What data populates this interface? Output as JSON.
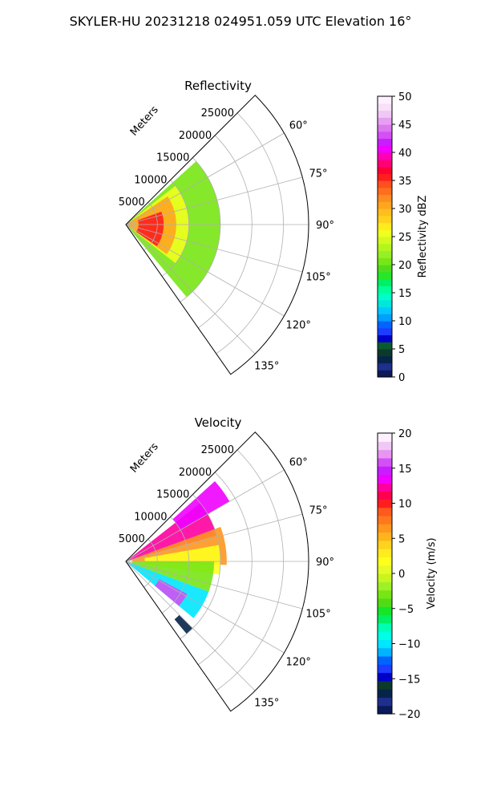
{
  "figure": {
    "suptitle": "SKYLER-HU  20231218  024951.059 UTC Elevation 16°"
  },
  "chart_data": [
    {
      "type": "heatmap",
      "subtype": "polar-sector (PPI)",
      "title": "Reflectivity",
      "radial_label": "Meters",
      "radial_ticks": [
        5000,
        10000,
        15000,
        20000,
        25000
      ],
      "angular_ticks_deg": [
        60,
        75,
        90,
        105,
        120,
        135
      ],
      "angular_tick_labels": [
        "60°",
        "75°",
        "90°",
        "105°",
        "120°",
        "135°"
      ],
      "azimuth_range_deg": [
        45,
        145
      ],
      "rmax_m": 29000,
      "grid": true,
      "colorbar": {
        "label": "Reflectivity dBZ",
        "range": [
          0,
          50
        ],
        "ticks": [
          0,
          5,
          10,
          15,
          20,
          25,
          30,
          35,
          40,
          45,
          50
        ],
        "colors": [
          "#0a1a5a",
          "#1e2f8c",
          "#06244a",
          "#0b3a2a",
          "#0a5a2e",
          "#0000c8",
          "#1e3cff",
          "#0064ff",
          "#00a0ff",
          "#00c8ff",
          "#00e6dc",
          "#00ffc8",
          "#00ff96",
          "#00f064",
          "#28e628",
          "#50dc1e",
          "#78e614",
          "#96f028",
          "#b4f51e",
          "#d2fa1e",
          "#f0ff1e",
          "#ffeb1e",
          "#ffd21e",
          "#ffbe1e",
          "#ffa51e",
          "#ff8c1e",
          "#ff6e1e",
          "#ff501e",
          "#ff1e1e",
          "#ff0032",
          "#ff0078",
          "#ff00b4",
          "#f000ff",
          "#c81eff",
          "#d250f5",
          "#dc78f0",
          "#e6a0f0",
          "#f0c8f5",
          "#f8e0f8",
          "#fff0ff"
        ]
      },
      "echo_regions": [
        {
          "value": 20,
          "az": [
            48,
            140
          ],
          "r": [
            0,
            15000
          ]
        },
        {
          "value": 25,
          "az": [
            52,
            128
          ],
          "r": [
            0,
            10000
          ]
        },
        {
          "value": 30,
          "az": [
            56,
            126
          ],
          "r": [
            0,
            8000
          ]
        },
        {
          "value": 36,
          "az": [
            70,
            125
          ],
          "r": [
            2000,
            6000
          ]
        }
      ]
    },
    {
      "type": "heatmap",
      "subtype": "polar-sector (PPI)",
      "title": "Velocity",
      "radial_label": "Meters",
      "radial_ticks": [
        5000,
        10000,
        15000,
        20000,
        25000
      ],
      "angular_ticks_deg": [
        60,
        75,
        90,
        105,
        120,
        135
      ],
      "angular_tick_labels": [
        "60°",
        "75°",
        "90°",
        "105°",
        "120°",
        "135°"
      ],
      "azimuth_range_deg": [
        45,
        145
      ],
      "rmax_m": 29000,
      "grid": true,
      "colorbar": {
        "label": "Velocity (m/s)",
        "range": [
          -20,
          20
        ],
        "ticks": [
          -20,
          -15,
          -10,
          -5,
          0,
          5,
          10,
          15,
          20
        ],
        "colors": [
          "#0a1a5a",
          "#1e2f8c",
          "#06244a",
          "#0b3a2a",
          "#0000c8",
          "#1e3cff",
          "#0064ff",
          "#00b4ff",
          "#00e6ff",
          "#00ffe6",
          "#00ffb4",
          "#00f064",
          "#14e628",
          "#50dc14",
          "#78e614",
          "#a0f028",
          "#c8f51e",
          "#e6fa28",
          "#ffff1e",
          "#ffeb1e",
          "#ffd21e",
          "#ffb41e",
          "#ff961e",
          "#ff781e",
          "#ff5a1e",
          "#ff1e1e",
          "#ff0050",
          "#ff00a0",
          "#f000ff",
          "#c81eff",
          "#d250f5",
          "#e696f0",
          "#f0c8f5",
          "#fff0ff"
        ]
      },
      "echo_regions": [
        {
          "value": 12,
          "az": [
            52,
            74
          ],
          "r": [
            500,
            15000
          ]
        },
        {
          "value": 14,
          "az": [
            48,
            60
          ],
          "r": [
            10000,
            19000
          ]
        },
        {
          "value": 6,
          "az": [
            70,
            92
          ],
          "r": [
            1000,
            16000
          ]
        },
        {
          "value": 2,
          "az": [
            80,
            98
          ],
          "r": [
            3000,
            15000
          ]
        },
        {
          "value": -3,
          "az": [
            90,
            110
          ],
          "r": [
            1000,
            14000
          ]
        },
        {
          "value": -10,
          "az": [
            110,
            130
          ],
          "r": [
            0,
            14000
          ]
        },
        {
          "value": 16,
          "az": [
            118,
            130
          ],
          "r": [
            6000,
            11000
          ]
        },
        {
          "value": -17,
          "az": [
            135,
            140
          ],
          "r": [
            12000,
            15000
          ]
        }
      ]
    }
  ]
}
